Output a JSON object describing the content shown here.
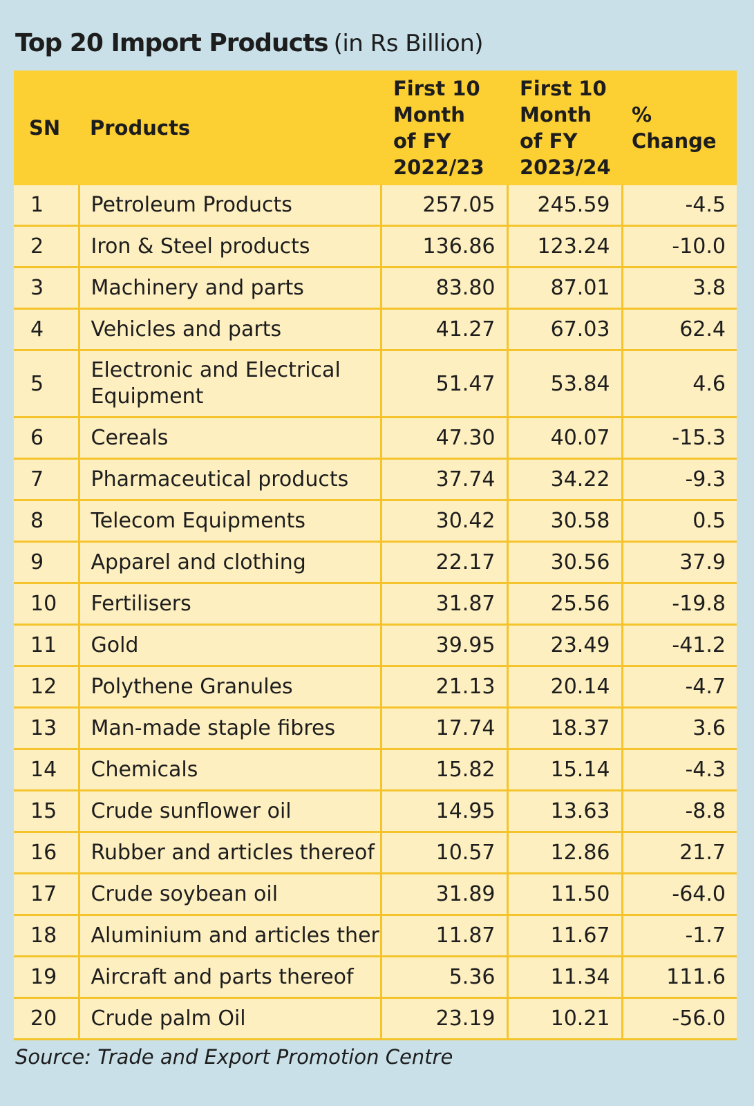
{
  "chart_data": {
    "type": "table",
    "title": "Top 20 Import Products",
    "subtitle": "(in Rs Billion)",
    "columns": [
      "SN",
      "Products",
      "First 10 Month of FY 2022/23",
      "First 10 Month of FY 2023/24",
      "% Change"
    ],
    "header_lines": {
      "sn": "SN",
      "products": "Products",
      "fy1": [
        "First 10",
        "Month",
        "of FY",
        "2022/23"
      ],
      "fy2": [
        "First 10",
        "Month",
        "of FY",
        "2023/24"
      ],
      "pct": [
        "%",
        "Change"
      ]
    },
    "rows": [
      {
        "sn": "1",
        "product": "Petroleum Products",
        "fy2022_23": "257.05",
        "fy2023_24": "245.59",
        "change": "-4.5"
      },
      {
        "sn": "2",
        "product": "Iron & Steel products",
        "fy2022_23": "136.86",
        "fy2023_24": "123.24",
        "change": "-10.0"
      },
      {
        "sn": "3",
        "product": "Machinery and parts",
        "fy2022_23": "83.80",
        "fy2023_24": "87.01",
        "change": "3.8"
      },
      {
        "sn": "4",
        "product": "Vehicles and parts",
        "fy2022_23": "41.27",
        "fy2023_24": "67.03",
        "change": "62.4"
      },
      {
        "sn": "5",
        "product": "Electronic and Electrical Equipment",
        "fy2022_23": "51.47",
        "fy2023_24": "53.84",
        "change": "4.6"
      },
      {
        "sn": "6",
        "product": "Cereals",
        "fy2022_23": "47.30",
        "fy2023_24": "40.07",
        "change": "-15.3"
      },
      {
        "sn": "7",
        "product": "Pharmaceutical products",
        "fy2022_23": "37.74",
        "fy2023_24": "34.22",
        "change": "-9.3"
      },
      {
        "sn": "8",
        "product": "Telecom Equipments",
        "fy2022_23": "30.42",
        "fy2023_24": "30.58",
        "change": "0.5"
      },
      {
        "sn": "9",
        "product": "Apparel and clothing",
        "fy2022_23": "22.17",
        "fy2023_24": "30.56",
        "change": "37.9"
      },
      {
        "sn": "10",
        "product": "Fertilisers",
        "fy2022_23": "31.87",
        "fy2023_24": "25.56",
        "change": "-19.8"
      },
      {
        "sn": "11",
        "product": "Gold",
        "fy2022_23": "39.95",
        "fy2023_24": "23.49",
        "change": "-41.2"
      },
      {
        "sn": "12",
        "product": "Polythene Granules",
        "fy2022_23": "21.13",
        "fy2023_24": "20.14",
        "change": "-4.7"
      },
      {
        "sn": "13",
        "product": "Man-made staple fibres",
        "fy2022_23": "17.74",
        "fy2023_24": "18.37",
        "change": "3.6"
      },
      {
        "sn": "14",
        "product": "Chemicals",
        "fy2022_23": "15.82",
        "fy2023_24": "15.14",
        "change": "-4.3"
      },
      {
        "sn": "15",
        "product": "Crude sunflower oil",
        "fy2022_23": "14.95",
        "fy2023_24": "13.63",
        "change": "-8.8"
      },
      {
        "sn": "16",
        "product": "Rubber and articles thereof",
        "fy2022_23": "10.57",
        "fy2023_24": "12.86",
        "change": "21.7"
      },
      {
        "sn": "17",
        "product": "Crude soybean oil",
        "fy2022_23": "31.89",
        "fy2023_24": "11.50",
        "change": "-64.0"
      },
      {
        "sn": "18",
        "product": "Aluminium and articles thereof",
        "fy2022_23": "11.87",
        "fy2023_24": "11.67",
        "change": "-1.7"
      },
      {
        "sn": "19",
        "product": "Aircraft and parts thereof",
        "fy2022_23": "5.36",
        "fy2023_24": "11.34",
        "change": "111.6"
      },
      {
        "sn": "20",
        "product": "Crude palm Oil",
        "fy2022_23": "23.19",
        "fy2023_24": "10.21",
        "change": "-56.0"
      }
    ],
    "source": "Source: Trade and Export Promotion Centre"
  },
  "colors": {
    "background": "#c9e0e8",
    "header": "#fccf33",
    "cell": "#fdefc0",
    "grid": "#f5c42c",
    "text": "#1d1d1d"
  }
}
